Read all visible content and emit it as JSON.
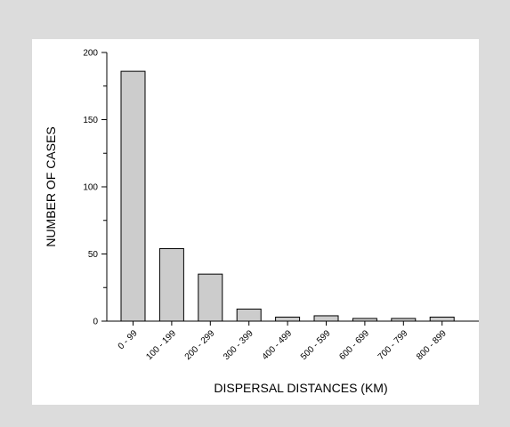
{
  "chart_data": {
    "type": "bar",
    "categories": [
      "0 - 99",
      "100 - 199",
      "200 - 299",
      "300 - 399",
      "400 - 499",
      "500 - 599",
      "600 - 699",
      "700 - 799",
      "800 - 899"
    ],
    "values": [
      186,
      54,
      35,
      9,
      3,
      4,
      2,
      2,
      3
    ],
    "xlabel": "DISPERSAL DISTANCES (KM)",
    "ylabel": "NUMBER OF CASES",
    "ylim": [
      0,
      200
    ],
    "yticks": [
      0,
      50,
      100,
      150,
      200
    ],
    "grid": false,
    "legend": "none",
    "colors": {
      "bar_fill": "#cccccc",
      "bar_stroke": "#000000",
      "panel_background": "#ffffff",
      "page_background": "#dcdcdc"
    }
  }
}
